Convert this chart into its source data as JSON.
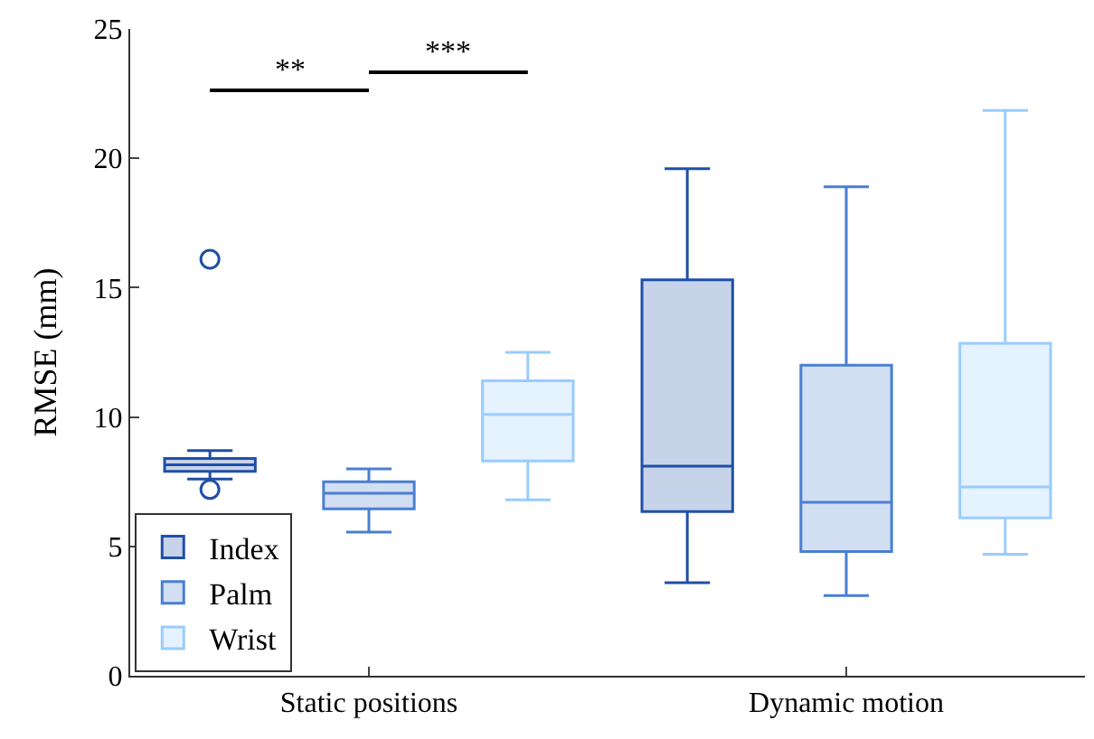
{
  "chart_data": {
    "type": "box",
    "ylabel": "RMSE (mm)",
    "categories": [
      "Static positions",
      "Dynamic motion"
    ],
    "ylim": [
      0,
      25
    ],
    "yticks": [
      0,
      5,
      10,
      15,
      20,
      25
    ],
    "legend": "bottom left",
    "annotations": [
      "**",
      "***"
    ],
    "series": [
      {
        "name": "Index",
        "color": "#1f4fa8",
        "boxes": [
          {
            "low": 7.6,
            "q1": 7.9,
            "median": 8.15,
            "q3": 8.4,
            "high": 8.7,
            "outliers": [
              16.1,
              7.2
            ]
          },
          {
            "low": 3.6,
            "q1": 6.35,
            "median": 8.1,
            "q3": 15.3,
            "high": 19.6
          }
        ]
      },
      {
        "name": "Palm",
        "color": "#4a7fd0",
        "boxes": [
          {
            "low": 5.55,
            "q1": 6.45,
            "median": 7.05,
            "q3": 7.5,
            "high": 8.0
          },
          {
            "low": 3.1,
            "q1": 4.8,
            "median": 6.7,
            "q3": 12.0,
            "high": 18.9
          }
        ]
      },
      {
        "name": "Wrist",
        "color": "#99ccff",
        "boxes": [
          {
            "low": 6.8,
            "q1": 8.3,
            "median": 10.1,
            "q3": 11.4,
            "high": 12.5
          },
          {
            "low": 4.7,
            "q1": 6.1,
            "median": 7.3,
            "q3": 12.85,
            "high": 21.85
          }
        ]
      }
    ]
  }
}
